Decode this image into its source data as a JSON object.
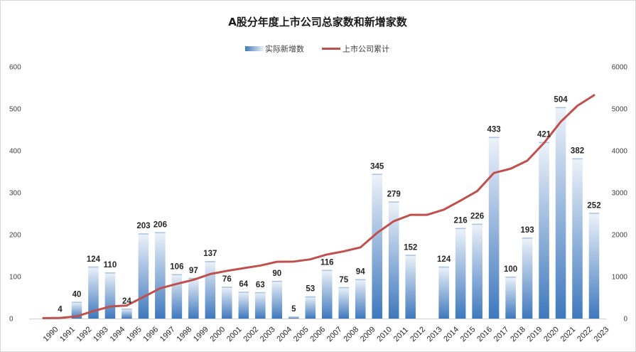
{
  "chart_data": {
    "type": "bar",
    "title": "A股分年度上市公司总家数和新增家数",
    "categories": [
      "1990",
      "1991",
      "1992",
      "1993",
      "1994",
      "1995",
      "1996",
      "1997",
      "1998",
      "1999",
      "2000",
      "2001",
      "2002",
      "2003",
      "2004",
      "2005",
      "2006",
      "2007",
      "2008",
      "2009",
      "2010",
      "2011",
      "2012",
      "2013",
      "2014",
      "2015",
      "2016",
      "2017",
      "2018",
      "2019",
      "2020",
      "2021",
      "2022",
      "2023"
    ],
    "series": [
      {
        "name": "实际新增数",
        "type": "bar",
        "axis": "left",
        "values": [
          null,
          4,
          40,
          124,
          110,
          24,
          203,
          206,
          106,
          97,
          137,
          76,
          64,
          63,
          90,
          5,
          53,
          116,
          75,
          94,
          345,
          279,
          152,
          null,
          124,
          216,
          226,
          433,
          100,
          193,
          421,
          504,
          382,
          252
        ],
        "labels": [
          "",
          "4",
          "40",
          "124",
          "110",
          "24",
          "203",
          "206",
          "106",
          "97",
          "137",
          "76",
          "64",
          "63",
          "90",
          "5",
          "53",
          "116",
          "75",
          "94",
          "345",
          "279",
          "152",
          "",
          "124",
          "216",
          "226",
          "433",
          "100",
          "193",
          "421",
          "504",
          "382",
          "252"
        ]
      },
      {
        "name": "上市公司累计",
        "type": "line",
        "axis": "right",
        "values": [
          10,
          14,
          54,
          178,
          288,
          312,
          515,
          721,
          827,
          924,
          1061,
          1137,
          1201,
          1264,
          1354,
          1359,
          1412,
          1528,
          1603,
          1697,
          2042,
          2321,
          2473,
          2473,
          2597,
          2813,
          3039,
          3472,
          3572,
          3765,
          4186,
          4690,
          5072,
          5324
        ]
      }
    ],
    "left_axis": {
      "min": 0,
      "max": 600,
      "step": 100,
      "ticks": [
        "0",
        "100",
        "200",
        "300",
        "400",
        "500",
        "600"
      ]
    },
    "right_axis": {
      "min": 0,
      "max": 6000,
      "step": 1000,
      "ticks": [
        "0",
        "1000",
        "2000",
        "3000",
        "4000",
        "5000",
        "6000"
      ]
    },
    "xlabel": "",
    "ylabel": "",
    "legend_position": "top-center",
    "grid": false,
    "colors": {
      "bar_top": "#e8eff8",
      "bar_bottom": "#3e78bd",
      "bar_cap": "#a8c2e3",
      "line": "#c0504d"
    }
  }
}
